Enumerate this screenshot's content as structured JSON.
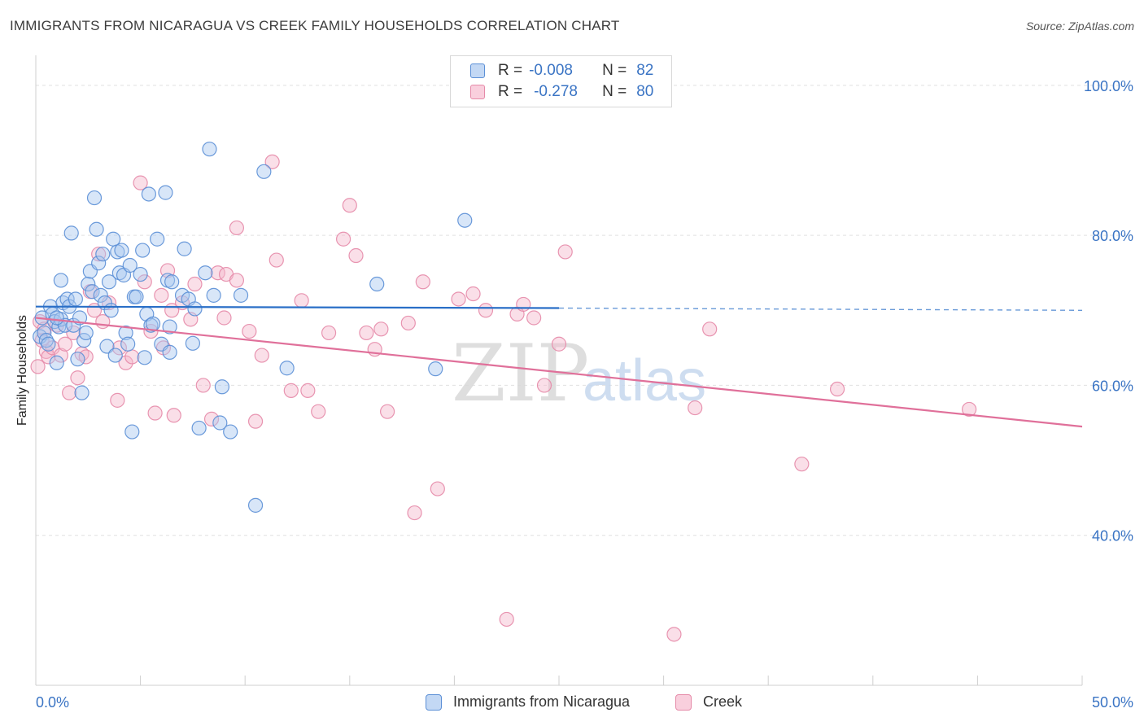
{
  "title": "IMMIGRANTS FROM NICARAGUA VS CREEK FAMILY HOUSEHOLDS CORRELATION CHART",
  "source": "Source: ZipAtlas.com",
  "watermark": {
    "zip": "ZIP",
    "atlas": "atlas"
  },
  "legend_top": {
    "rows": [
      {
        "r_label": "R =",
        "r_value": "-0.008",
        "n_label": "N =",
        "n_value": "82"
      },
      {
        "r_label": "R =",
        "r_value": "-0.278",
        "n_label": "N =",
        "n_value": "80"
      }
    ]
  },
  "legend_bottom": {
    "items": [
      {
        "label": "Immigrants from Nicaragua"
      },
      {
        "label": "Creek"
      }
    ]
  },
  "colors": {
    "blue_fill": "#a9c8f0",
    "blue_stroke": "#5b8fd6",
    "blue_line": "#2a6fc7",
    "pink_fill": "#f5b8cc",
    "pink_stroke": "#e58aa8",
    "pink_line": "#e0709a",
    "axis_text": "#3a74c4",
    "grid": "#e0e0e0"
  },
  "chart_data": {
    "type": "scatter",
    "title": "IMMIGRANTS FROM NICARAGUA VS CREEK FAMILY HOUSEHOLDS CORRELATION CHART",
    "xlabel": "",
    "ylabel": "Family Households",
    "xlim": [
      0,
      50
    ],
    "ylim": [
      20,
      104
    ],
    "x_tick_labels": [
      "0.0%",
      "50.0%"
    ],
    "y_ticks": [
      {
        "value": 100,
        "label": "100.0%"
      },
      {
        "value": 80,
        "label": "80.0%"
      },
      {
        "value": 60,
        "label": "60.0%"
      },
      {
        "value": 40,
        "label": "40.0%"
      }
    ],
    "series": [
      {
        "name": "Immigrants from Nicaragua",
        "R": -0.008,
        "N": 82,
        "trend": {
          "x0": 0,
          "y0": 70.5,
          "x1": 25,
          "y1": 70.3,
          "dash_x1": 50,
          "dash_y1": 70.0
        },
        "points": [
          [
            0.2,
            66.5
          ],
          [
            0.3,
            69.0
          ],
          [
            0.4,
            67.0
          ],
          [
            0.5,
            66.0
          ],
          [
            0.6,
            65.5
          ],
          [
            0.7,
            70.5
          ],
          [
            0.8,
            69.5
          ],
          [
            0.9,
            68.5
          ],
          [
            1.0,
            63.0
          ],
          [
            1.1,
            67.8
          ],
          [
            1.2,
            68.8
          ],
          [
            1.2,
            74.0
          ],
          [
            1.3,
            71.0
          ],
          [
            1.4,
            68.0
          ],
          [
            1.5,
            71.5
          ],
          [
            1.6,
            70.5
          ],
          [
            1.7,
            80.3
          ],
          [
            1.8,
            68.0
          ],
          [
            1.9,
            71.5
          ],
          [
            2.0,
            63.5
          ],
          [
            2.1,
            69.0
          ],
          [
            2.2,
            59.0
          ],
          [
            2.3,
            66.0
          ],
          [
            2.4,
            67.0
          ],
          [
            2.5,
            73.5
          ],
          [
            2.6,
            75.2
          ],
          [
            2.7,
            72.5
          ],
          [
            2.8,
            85.0
          ],
          [
            2.9,
            80.8
          ],
          [
            3.0,
            76.3
          ],
          [
            3.1,
            72.0
          ],
          [
            3.2,
            77.5
          ],
          [
            3.3,
            71.0
          ],
          [
            3.4,
            65.2
          ],
          [
            3.5,
            73.8
          ],
          [
            3.6,
            70.0
          ],
          [
            3.7,
            79.5
          ],
          [
            3.8,
            64.0
          ],
          [
            3.9,
            77.8
          ],
          [
            4.0,
            75.0
          ],
          [
            4.1,
            78.0
          ],
          [
            4.2,
            74.7
          ],
          [
            4.3,
            67.0
          ],
          [
            4.4,
            65.5
          ],
          [
            4.5,
            76.0
          ],
          [
            4.6,
            53.8
          ],
          [
            4.7,
            71.8
          ],
          [
            4.8,
            71.8
          ],
          [
            5.0,
            74.8
          ],
          [
            5.1,
            78.0
          ],
          [
            5.2,
            63.7
          ],
          [
            5.3,
            69.5
          ],
          [
            5.4,
            85.5
          ],
          [
            5.5,
            68.0
          ],
          [
            5.6,
            68.2
          ],
          [
            5.8,
            79.5
          ],
          [
            6.0,
            65.5
          ],
          [
            6.2,
            85.7
          ],
          [
            6.3,
            74.0
          ],
          [
            6.4,
            64.4
          ],
          [
            6.5,
            73.8
          ],
          [
            6.4,
            67.8
          ],
          [
            7.0,
            72.0
          ],
          [
            7.1,
            78.2
          ],
          [
            7.3,
            71.5
          ],
          [
            7.5,
            65.6
          ],
          [
            7.6,
            70.2
          ],
          [
            7.8,
            54.3
          ],
          [
            8.1,
            75.0
          ],
          [
            8.3,
            91.5
          ],
          [
            8.5,
            72.0
          ],
          [
            8.8,
            55.0
          ],
          [
            8.9,
            59.8
          ],
          [
            9.3,
            53.8
          ],
          [
            9.8,
            72.0
          ],
          [
            10.5,
            44.0
          ],
          [
            10.9,
            88.5
          ],
          [
            12.0,
            62.3
          ],
          [
            16.3,
            73.5
          ],
          [
            19.1,
            62.2
          ],
          [
            20.5,
            82.0
          ],
          [
            1.0,
            69.0
          ]
        ]
      },
      {
        "name": "Creek",
        "R": -0.278,
        "N": 80,
        "trend": {
          "x0": 0,
          "y0": 69.0,
          "x1": 50,
          "y1": 54.5
        },
        "points": [
          [
            0.1,
            62.5
          ],
          [
            0.3,
            66.0
          ],
          [
            0.5,
            64.5
          ],
          [
            0.6,
            63.8
          ],
          [
            0.8,
            65.0
          ],
          [
            1.0,
            68.0
          ],
          [
            1.2,
            64.0
          ],
          [
            1.4,
            65.5
          ],
          [
            1.6,
            59.0
          ],
          [
            1.8,
            67.0
          ],
          [
            2.0,
            61.0
          ],
          [
            2.2,
            64.2
          ],
          [
            2.4,
            63.8
          ],
          [
            2.6,
            72.5
          ],
          [
            2.8,
            70.0
          ],
          [
            3.0,
            77.5
          ],
          [
            3.2,
            68.5
          ],
          [
            3.5,
            71.0
          ],
          [
            3.9,
            58.0
          ],
          [
            4.0,
            65.0
          ],
          [
            4.3,
            63.0
          ],
          [
            4.6,
            63.8
          ],
          [
            5.0,
            87.0
          ],
          [
            5.2,
            73.8
          ],
          [
            5.5,
            67.2
          ],
          [
            5.7,
            56.3
          ],
          [
            6.0,
            72.0
          ],
          [
            6.1,
            65.0
          ],
          [
            6.3,
            75.3
          ],
          [
            6.5,
            70.0
          ],
          [
            6.6,
            56.0
          ],
          [
            7.0,
            71.0
          ],
          [
            7.4,
            68.8
          ],
          [
            7.6,
            73.5
          ],
          [
            8.0,
            60.0
          ],
          [
            8.4,
            55.5
          ],
          [
            8.7,
            75.0
          ],
          [
            9.0,
            69.0
          ],
          [
            9.1,
            74.8
          ],
          [
            9.6,
            74.0
          ],
          [
            9.6,
            81.0
          ],
          [
            10.2,
            67.2
          ],
          [
            10.5,
            55.2
          ],
          [
            10.8,
            64.0
          ],
          [
            11.3,
            89.8
          ],
          [
            11.5,
            76.7
          ],
          [
            12.2,
            59.3
          ],
          [
            12.7,
            71.3
          ],
          [
            13.0,
            59.3
          ],
          [
            13.5,
            56.5
          ],
          [
            14.0,
            67.0
          ],
          [
            14.7,
            79.5
          ],
          [
            15.0,
            84.0
          ],
          [
            15.3,
            77.3
          ],
          [
            15.8,
            67.0
          ],
          [
            16.2,
            64.8
          ],
          [
            16.5,
            67.5
          ],
          [
            16.8,
            56.5
          ],
          [
            17.8,
            68.3
          ],
          [
            18.1,
            43.0
          ],
          [
            18.5,
            73.8
          ],
          [
            19.2,
            46.2
          ],
          [
            20.2,
            71.5
          ],
          [
            20.9,
            72.2
          ],
          [
            21.5,
            70.0
          ],
          [
            22.5,
            28.8
          ],
          [
            23.0,
            69.5
          ],
          [
            23.3,
            70.8
          ],
          [
            23.8,
            69.0
          ],
          [
            24.3,
            60.0
          ],
          [
            25.0,
            65.5
          ],
          [
            25.3,
            77.8
          ],
          [
            30.5,
            26.8
          ],
          [
            31.5,
            57.0
          ],
          [
            32.2,
            67.5
          ],
          [
            36.6,
            49.5
          ],
          [
            38.3,
            59.5
          ],
          [
            44.6,
            56.8
          ],
          [
            0.2,
            68.5
          ],
          [
            0.4,
            67.5
          ]
        ]
      }
    ]
  }
}
